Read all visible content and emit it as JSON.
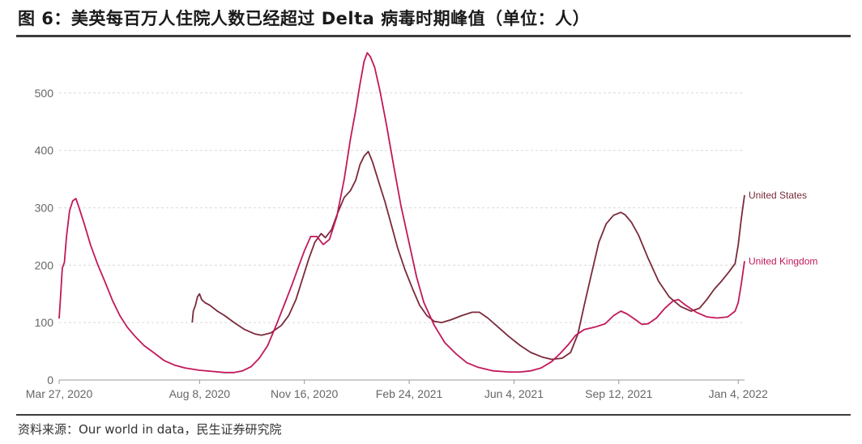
{
  "header": {
    "title": "图 6：美英每百万人住院人数已经超过 Delta 病毒时期峰值（单位：人）"
  },
  "footer": {
    "source": "资料来源：Our world in data，民生证券研究院"
  },
  "chart_data": {
    "type": "line",
    "title": "",
    "xlabel": "",
    "ylabel": "",
    "ylim": [
      0,
      580
    ],
    "yticks": [
      0,
      100,
      200,
      300,
      400,
      500
    ],
    "xlim": [
      "2020-03-27",
      "2022-01-10"
    ],
    "xticks": [
      {
        "date": "2020-03-27",
        "label": "Mar 27, 2020"
      },
      {
        "date": "2020-08-08",
        "label": "Aug 8, 2020"
      },
      {
        "date": "2020-11-16",
        "label": "Nov 16, 2020"
      },
      {
        "date": "2021-02-24",
        "label": "Feb 24, 2021"
      },
      {
        "date": "2021-06-04",
        "label": "Jun 4, 2021"
      },
      {
        "date": "2021-09-12",
        "label": "Sep 12, 2021"
      },
      {
        "date": "2022-01-04",
        "label": "Jan 4, 2022"
      }
    ],
    "grid": "horizontal-dashed",
    "series": [
      {
        "name": "United States",
        "color": "#7a2a3a",
        "points": [
          [
            "2020-08-01",
            100
          ],
          [
            "2020-08-02",
            120
          ],
          [
            "2020-08-04",
            130
          ],
          [
            "2020-08-06",
            145
          ],
          [
            "2020-08-08",
            150
          ],
          [
            "2020-08-10",
            140
          ],
          [
            "2020-08-13",
            135
          ],
          [
            "2020-08-18",
            130
          ],
          [
            "2020-08-25",
            120
          ],
          [
            "2020-09-01",
            112
          ],
          [
            "2020-09-10",
            100
          ],
          [
            "2020-09-20",
            88
          ],
          [
            "2020-09-30",
            80
          ],
          [
            "2020-10-06",
            78
          ],
          [
            "2020-10-15",
            82
          ],
          [
            "2020-10-25",
            95
          ],
          [
            "2020-11-01",
            112
          ],
          [
            "2020-11-08",
            140
          ],
          [
            "2020-11-14",
            175
          ],
          [
            "2020-11-20",
            210
          ],
          [
            "2020-11-26",
            240
          ],
          [
            "2020-12-02",
            255
          ],
          [
            "2020-12-06",
            248
          ],
          [
            "2020-12-12",
            262
          ],
          [
            "2020-12-18",
            292
          ],
          [
            "2020-12-24",
            318
          ],
          [
            "2020-12-30",
            330
          ],
          [
            "2021-01-04",
            348
          ],
          [
            "2021-01-08",
            375
          ],
          [
            "2021-01-12",
            390
          ],
          [
            "2021-01-16",
            398
          ],
          [
            "2021-01-20",
            380
          ],
          [
            "2021-01-26",
            345
          ],
          [
            "2021-02-01",
            310
          ],
          [
            "2021-02-07",
            270
          ],
          [
            "2021-02-13",
            230
          ],
          [
            "2021-02-20",
            192
          ],
          [
            "2021-02-27",
            160
          ],
          [
            "2021-03-06",
            130
          ],
          [
            "2021-03-13",
            112
          ],
          [
            "2021-03-20",
            102
          ],
          [
            "2021-03-27",
            100
          ],
          [
            "2021-04-05",
            105
          ],
          [
            "2021-04-15",
            112
          ],
          [
            "2021-04-25",
            118
          ],
          [
            "2021-05-02",
            118
          ],
          [
            "2021-05-10",
            108
          ],
          [
            "2021-05-20",
            92
          ],
          [
            "2021-05-30",
            76
          ],
          [
            "2021-06-10",
            60
          ],
          [
            "2021-06-20",
            48
          ],
          [
            "2021-07-01",
            40
          ],
          [
            "2021-07-10",
            36
          ],
          [
            "2021-07-20",
            38
          ],
          [
            "2021-07-28",
            48
          ],
          [
            "2021-08-04",
            80
          ],
          [
            "2021-08-10",
            130
          ],
          [
            "2021-08-17",
            185
          ],
          [
            "2021-08-24",
            240
          ],
          [
            "2021-08-31",
            272
          ],
          [
            "2021-09-07",
            287
          ],
          [
            "2021-09-14",
            292
          ],
          [
            "2021-09-18",
            288
          ],
          [
            "2021-09-24",
            275
          ],
          [
            "2021-10-01",
            252
          ],
          [
            "2021-10-10",
            212
          ],
          [
            "2021-10-20",
            172
          ],
          [
            "2021-10-30",
            145
          ],
          [
            "2021-11-10",
            128
          ],
          [
            "2021-11-20",
            120
          ],
          [
            "2021-11-28",
            125
          ],
          [
            "2021-12-05",
            140
          ],
          [
            "2021-12-12",
            158
          ],
          [
            "2021-12-19",
            172
          ],
          [
            "2021-12-26",
            188
          ],
          [
            "2022-01-01",
            203
          ],
          [
            "2022-01-04",
            235
          ],
          [
            "2022-01-07",
            282
          ],
          [
            "2022-01-10",
            322
          ]
        ]
      },
      {
        "name": "United Kingdom",
        "color": "#c2185b",
        "points": [
          [
            "2020-03-27",
            107
          ],
          [
            "2020-03-28",
            135
          ],
          [
            "2020-03-30",
            195
          ],
          [
            "2020-04-01",
            205
          ],
          [
            "2020-04-03",
            250
          ],
          [
            "2020-04-06",
            295
          ],
          [
            "2020-04-09",
            312
          ],
          [
            "2020-04-12",
            316
          ],
          [
            "2020-04-15",
            300
          ],
          [
            "2020-04-20",
            272
          ],
          [
            "2020-04-26",
            235
          ],
          [
            "2020-05-03",
            200
          ],
          [
            "2020-05-10",
            170
          ],
          [
            "2020-05-17",
            138
          ],
          [
            "2020-05-24",
            112
          ],
          [
            "2020-05-31",
            92
          ],
          [
            "2020-06-08",
            75
          ],
          [
            "2020-06-16",
            60
          ],
          [
            "2020-06-25",
            48
          ],
          [
            "2020-07-05",
            34
          ],
          [
            "2020-07-15",
            26
          ],
          [
            "2020-07-25",
            21
          ],
          [
            "2020-08-08",
            17
          ],
          [
            "2020-08-20",
            15
          ],
          [
            "2020-09-01",
            13
          ],
          [
            "2020-09-10",
            13
          ],
          [
            "2020-09-18",
            16
          ],
          [
            "2020-09-26",
            23
          ],
          [
            "2020-10-04",
            38
          ],
          [
            "2020-10-12",
            60
          ],
          [
            "2020-10-20",
            95
          ],
          [
            "2020-10-28",
            132
          ],
          [
            "2020-11-04",
            165
          ],
          [
            "2020-11-10",
            195
          ],
          [
            "2020-11-16",
            225
          ],
          [
            "2020-11-22",
            250
          ],
          [
            "2020-11-28",
            250
          ],
          [
            "2020-12-04",
            236
          ],
          [
            "2020-12-10",
            245
          ],
          [
            "2020-12-17",
            285
          ],
          [
            "2020-12-24",
            350
          ],
          [
            "2020-12-30",
            420
          ],
          [
            "2021-01-04",
            470
          ],
          [
            "2021-01-08",
            515
          ],
          [
            "2021-01-12",
            555
          ],
          [
            "2021-01-15",
            570
          ],
          [
            "2021-01-18",
            563
          ],
          [
            "2021-01-22",
            545
          ],
          [
            "2021-01-27",
            505
          ],
          [
            "2021-02-02",
            448
          ],
          [
            "2021-02-09",
            375
          ],
          [
            "2021-02-16",
            305
          ],
          [
            "2021-02-24",
            238
          ],
          [
            "2021-03-03",
            180
          ],
          [
            "2021-03-10",
            135
          ],
          [
            "2021-03-20",
            95
          ],
          [
            "2021-03-30",
            65
          ],
          [
            "2021-04-10",
            45
          ],
          [
            "2021-04-20",
            30
          ],
          [
            "2021-05-01",
            22
          ],
          [
            "2021-05-15",
            16
          ],
          [
            "2021-05-30",
            14
          ],
          [
            "2021-06-10",
            14
          ],
          [
            "2021-06-20",
            16
          ],
          [
            "2021-06-30",
            21
          ],
          [
            "2021-07-10",
            32
          ],
          [
            "2021-07-18",
            46
          ],
          [
            "2021-07-26",
            62
          ],
          [
            "2021-08-02",
            78
          ],
          [
            "2021-08-10",
            88
          ],
          [
            "2021-08-20",
            92
          ],
          [
            "2021-08-30",
            98
          ],
          [
            "2021-09-07",
            112
          ],
          [
            "2021-09-14",
            120
          ],
          [
            "2021-09-20",
            115
          ],
          [
            "2021-09-28",
            105
          ],
          [
            "2021-10-04",
            97
          ],
          [
            "2021-10-10",
            98
          ],
          [
            "2021-10-18",
            108
          ],
          [
            "2021-10-26",
            125
          ],
          [
            "2021-11-03",
            138
          ],
          [
            "2021-11-08",
            140
          ],
          [
            "2021-11-15",
            130
          ],
          [
            "2021-11-25",
            118
          ],
          [
            "2021-12-05",
            110
          ],
          [
            "2021-12-15",
            108
          ],
          [
            "2021-12-25",
            110
          ],
          [
            "2022-01-01",
            120
          ],
          [
            "2022-01-04",
            135
          ],
          [
            "2022-01-07",
            168
          ],
          [
            "2022-01-10",
            207
          ]
        ]
      }
    ]
  }
}
